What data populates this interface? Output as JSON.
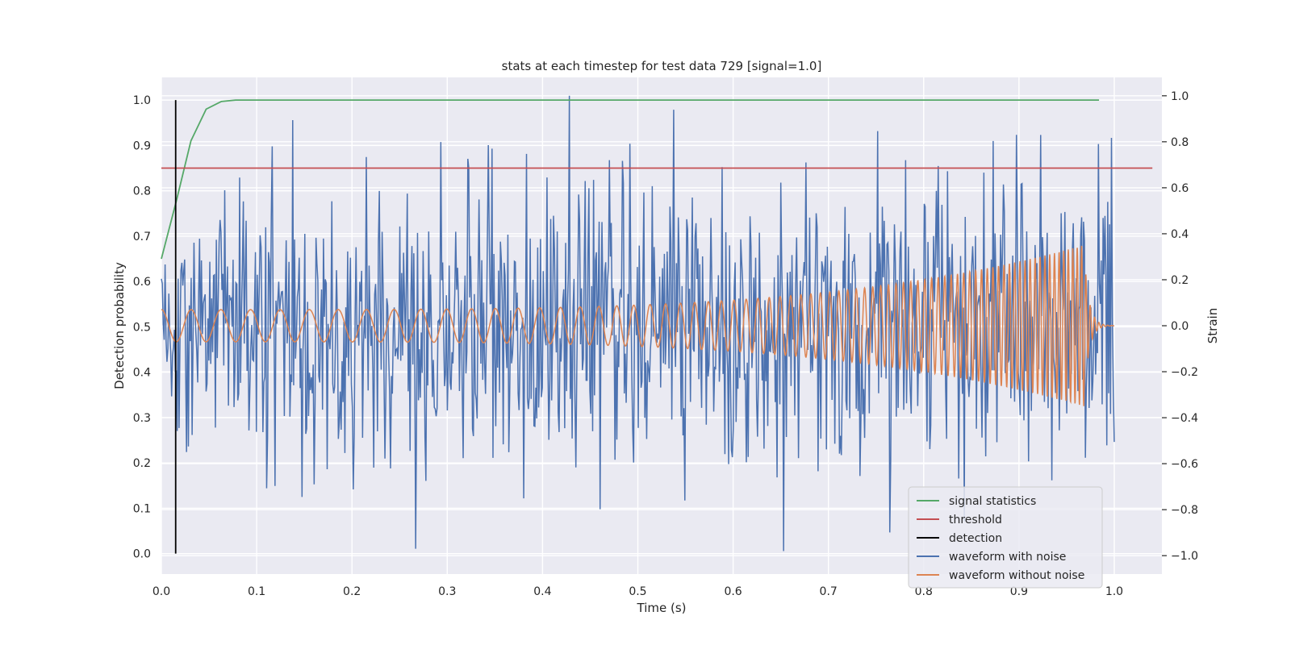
{
  "chart_data": {
    "type": "line",
    "title": "stats at each timestep for test data 729 [signal=1.0]",
    "xlabel": "Time (s)",
    "ylabel": "Detection probability",
    "ylabel_right": "Strain",
    "xlim": [
      0.0,
      1.05
    ],
    "ylim": [
      -0.045,
      1.05
    ],
    "ylim_right": [
      -1.08,
      1.08
    ],
    "x_ticks": [
      "0.0",
      "0.1",
      "0.2",
      "0.3",
      "0.4",
      "0.5",
      "0.6",
      "0.7",
      "0.8",
      "0.9",
      "1.0"
    ],
    "x_tick_values": [
      0.0,
      0.1,
      0.2,
      0.3,
      0.4,
      0.5,
      0.6,
      0.7,
      0.8,
      0.9,
      1.0
    ],
    "y_ticks": [
      "0.0",
      "0.1",
      "0.2",
      "0.3",
      "0.4",
      "0.5",
      "0.6",
      "0.7",
      "0.8",
      "0.9",
      "1.0"
    ],
    "y_tick_values": [
      0.0,
      0.1,
      0.2,
      0.3,
      0.4,
      0.5,
      0.6,
      0.7,
      0.8,
      0.9,
      1.0
    ],
    "y_right_ticks": [
      "−1.0",
      "−0.8",
      "−0.6",
      "−0.4",
      "−0.2",
      "0.0",
      "0.2",
      "0.4",
      "0.6",
      "0.8",
      "1.0"
    ],
    "y_right_tick_values": [
      -1.0,
      -0.8,
      -0.6,
      -0.4,
      -0.2,
      0.0,
      0.2,
      0.4,
      0.6,
      0.8,
      1.0
    ],
    "grid": true,
    "legend_position": "bottom-right",
    "series": [
      {
        "name": "signal statistics",
        "axis": "left",
        "color": "#55a868",
        "x": [
          0.0,
          0.016,
          0.031,
          0.047,
          0.063,
          0.078,
          0.1,
          0.2,
          0.3,
          0.4,
          0.5,
          0.6,
          0.7,
          0.8,
          0.9,
          0.984
        ],
        "y": [
          0.65,
          0.78,
          0.91,
          0.98,
          0.997,
          1.0,
          1.0,
          1.0,
          1.0,
          1.0,
          1.0,
          1.0,
          1.0,
          1.0,
          1.0,
          1.0
        ]
      },
      {
        "name": "threshold",
        "axis": "left",
        "color": "#c44e52",
        "x": [
          0.0,
          1.04
        ],
        "y": [
          0.85,
          0.85
        ]
      },
      {
        "name": "detection",
        "axis": "left",
        "color": "#000000",
        "x": [
          0.015,
          0.015
        ],
        "y": [
          0.0,
          1.0
        ]
      },
      {
        "name": "waveform with noise",
        "axis": "right",
        "color": "#4c72b0",
        "x_range": [
          0.0,
          1.0
        ],
        "count": 1024,
        "y_min": -1.0,
        "y_max": 1.0,
        "peaks": [
          {
            "x": 0.116,
            "y": 0.78
          },
          {
            "x": 0.347,
            "y": 0.77
          },
          {
            "x": 0.428,
            "y": 1.0
          },
          {
            "x": 0.47,
            "y": 0.72
          },
          {
            "x": 0.676,
            "y": 0.71
          },
          {
            "x": 0.781,
            "y": 0.72
          },
          {
            "x": 0.897,
            "y": 0.83
          },
          {
            "x": 0.267,
            "y": -0.97
          },
          {
            "x": 0.549,
            "y": -0.76
          },
          {
            "x": 0.653,
            "y": -0.98
          },
          {
            "x": 0.16,
            "y": -0.69
          },
          {
            "x": 0.843,
            "y": -0.85
          }
        ]
      },
      {
        "name": "waveform without noise",
        "axis": "right",
        "color": "#dd8452",
        "x_range": [
          0.0,
          1.0
        ],
        "amplitude_start": 0.07,
        "amplitude_end": 0.35,
        "merger_time": 0.968,
        "frequency_start_hz": 32,
        "frequency_end_hz": 220
      }
    ]
  }
}
